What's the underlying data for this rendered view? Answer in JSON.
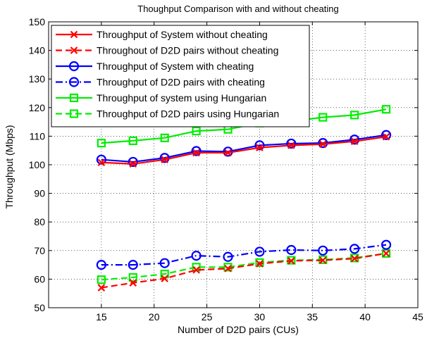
{
  "chart_data": {
    "type": "line",
    "title": "Thoughput Comparison with and without cheating",
    "xlabel": "Number of D2D pairs (CUs)",
    "ylabel": "Throughput (Mbps)",
    "xlim": [
      10,
      45
    ],
    "ylim": [
      50,
      150
    ],
    "xticks": [
      15,
      20,
      25,
      30,
      35,
      40,
      45
    ],
    "yticks": [
      50,
      60,
      70,
      80,
      90,
      100,
      110,
      120,
      130,
      140,
      150
    ],
    "grid": true,
    "legend_position": "top-left",
    "x": [
      15,
      18,
      21,
      24,
      27,
      30,
      33,
      36,
      39,
      42
    ],
    "series": [
      {
        "name": "Throughput of System without cheating",
        "color": "#ff0000",
        "linestyle": "solid",
        "marker": "x",
        "values": [
          100.8,
          100.3,
          101.8,
          104.2,
          104.2,
          106.0,
          106.8,
          107.2,
          108.2,
          109.8
        ]
      },
      {
        "name": "Throughout of D2D pairs without cheating",
        "color": "#ff0000",
        "linestyle": "dashed",
        "marker": "x",
        "values": [
          57.0,
          58.7,
          60.2,
          63.2,
          63.7,
          65.4,
          66.4,
          66.6,
          67.2,
          69.0
        ]
      },
      {
        "name": "Throughput of System with cheating",
        "color": "#0000ff",
        "linestyle": "solid",
        "marker": "circle",
        "values": [
          101.8,
          101.0,
          102.4,
          104.8,
          104.6,
          106.8,
          107.4,
          107.6,
          108.8,
          110.4
        ]
      },
      {
        "name": "Throughput of D2D pairs with cheating",
        "color": "#0000ff",
        "linestyle": "dashdot",
        "marker": "circle",
        "values": [
          65.0,
          65.0,
          65.6,
          68.2,
          67.8,
          69.6,
          70.2,
          70.0,
          70.6,
          72.0
        ]
      },
      {
        "name": "Throughput of system using Hungarian",
        "color": "#00ee00",
        "linestyle": "solid",
        "marker": "square",
        "values": [
          107.6,
          108.4,
          109.4,
          111.8,
          112.4,
          114.6,
          115.2,
          116.6,
          117.4,
          119.4
        ]
      },
      {
        "name": "Throughput of D2D pairs using Hungarian",
        "color": "#00ee00",
        "linestyle": "dashed",
        "marker": "square",
        "values": [
          59.8,
          60.6,
          61.8,
          64.2,
          64.2,
          65.8,
          66.6,
          66.8,
          67.4,
          69.0
        ]
      }
    ]
  }
}
